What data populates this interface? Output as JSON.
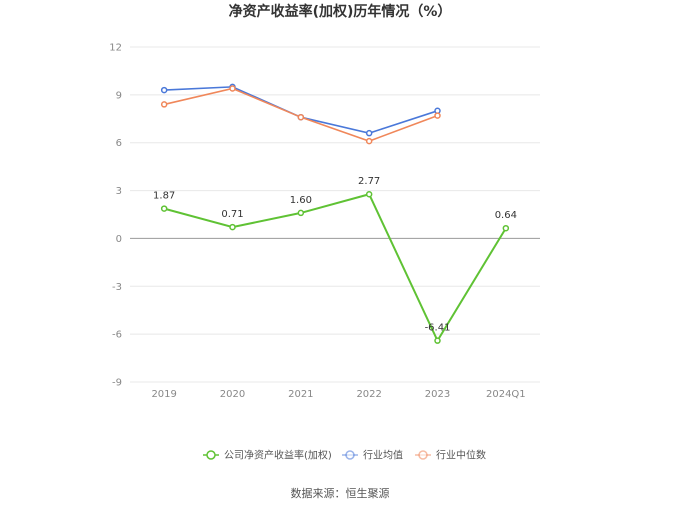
{
  "chart_data": {
    "type": "line",
    "title": "净资产收益率(加权)历年情况（%）",
    "categories": [
      "2019",
      "2020",
      "2021",
      "2022",
      "2023",
      "2024Q1"
    ],
    "ylim": [
      -9,
      12
    ],
    "yticks": [
      12,
      9,
      6,
      3,
      0,
      -3,
      -6,
      -9
    ],
    "grid": true,
    "legend_placement": "bottom",
    "series": [
      {
        "name": "公司净资产收益率(加权)",
        "color": "#5fc234",
        "values": [
          1.87,
          0.71,
          1.6,
          2.77,
          -6.41,
          0.64
        ],
        "labels": [
          "1.87",
          "0.71",
          "1.60",
          "2.77",
          "-6.41",
          "0.64"
        ]
      },
      {
        "name": "行业均值",
        "color": "#4a78d9",
        "values": [
          9.3,
          9.5,
          7.6,
          6.6,
          8.0,
          null
        ]
      },
      {
        "name": "行业中位数",
        "color": "#f0875a",
        "values": [
          8.4,
          9.4,
          7.6,
          6.1,
          7.7,
          null
        ]
      }
    ]
  },
  "source": "数据来源：恒生聚源"
}
